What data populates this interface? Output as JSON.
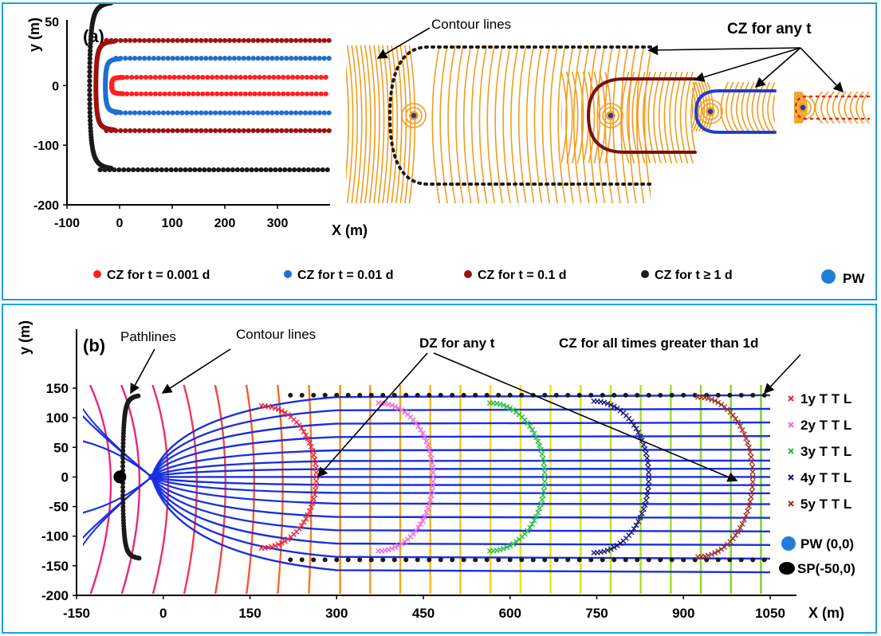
{
  "chart_data": [
    {
      "type": "scatter",
      "panel_label": "(a)",
      "xlabel": "X (m)",
      "ylabel": "y (m)",
      "xlim": [
        -100,
        400
      ],
      "ylim": [
        -200,
        70
      ],
      "xticks": [
        -100,
        0,
        100,
        200,
        300
      ],
      "yticks": [
        0,
        -100,
        -200
      ],
      "ytick_labels_extra": [
        "50"
      ],
      "series": [
        {
          "name": "CZ for t = 0.001 d",
          "color": "#ff2020",
          "x0": -15,
          "halfwidth": 14
        },
        {
          "name": "CZ for t = 0.01 d",
          "color": "#1f6fd0",
          "x0": -27,
          "halfwidth": 46
        },
        {
          "name": "CZ for t = 0.1 d",
          "color": "#a01010",
          "x0": -45,
          "halfwidth": 76
        },
        {
          "name": "CZ for t ≥ 1 d",
          "color": "#1a1a1a",
          "x0": -57,
          "halfwidth": 142
        }
      ],
      "pw_label": "PW",
      "annotations": {
        "contour": "Contour lines",
        "cz_any": "CZ for any t"
      }
    },
    {
      "type": "line",
      "panel_label": "(b)",
      "xlabel": "X (m)",
      "ylabel": "y (m)",
      "xlim": [
        -150,
        1050
      ],
      "ylim": [
        -200,
        150
      ],
      "xticks": [
        -150,
        0,
        150,
        300,
        450,
        600,
        750,
        900,
        1050
      ],
      "yticks": [
        150,
        100,
        50,
        0,
        -50,
        -100,
        -150,
        -200
      ],
      "ttl": [
        {
          "name": "1y T T L",
          "color": "#e8283c",
          "xmax": 265,
          "span": 120
        },
        {
          "name": "2y T T L",
          "color": "#f06ad8",
          "xmax": 467,
          "span": 125
        },
        {
          "name": "3y T T L",
          "color": "#28c040",
          "xmax": 660,
          "span": 125
        },
        {
          "name": "4y T T L",
          "color": "#1a1a78",
          "xmax": 840,
          "span": 128
        },
        {
          "name": "5y T T L",
          "color": "#a03020",
          "xmax": 1020,
          "span": 135
        }
      ],
      "pw_label": "PW (0,0)",
      "sp_label": "SP(-50,0)",
      "annotations": {
        "pathlines": "Pathlines",
        "contour": "Contour lines",
        "dz_any": "DZ for any t",
        "cz_all": "CZ for all times greater than 1d"
      }
    }
  ]
}
